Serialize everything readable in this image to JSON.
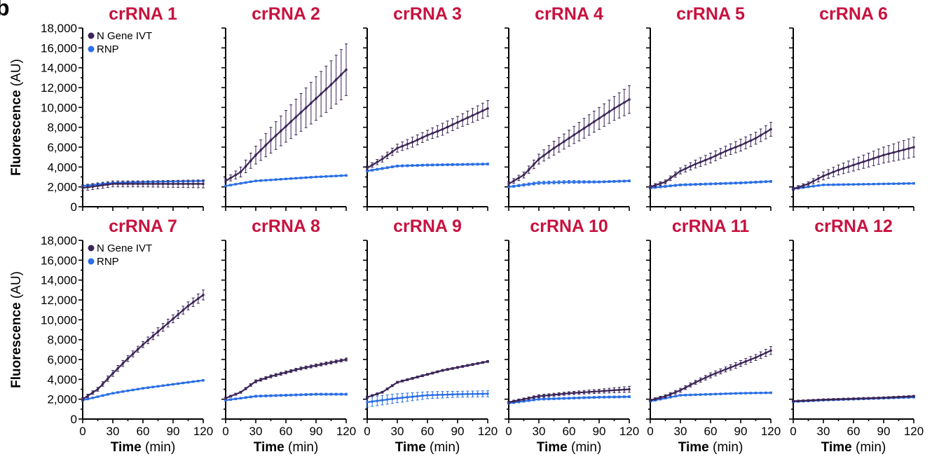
{
  "panel_letter": "b",
  "chart_data": {
    "type": "line",
    "y_axis_label_bold": "Fluorescence",
    "y_axis_label_unit": "(AU)",
    "x_axis_label_bold": "Time",
    "x_axis_label_unit": "(min)",
    "xlim": [
      0,
      120
    ],
    "ylim": [
      0,
      18000
    ],
    "x_ticks": [
      0,
      30,
      60,
      90,
      120
    ],
    "y_ticks": [
      0,
      2000,
      4000,
      6000,
      8000,
      10000,
      12000,
      14000,
      16000,
      18000
    ],
    "y_tick_labels": [
      "0",
      "2,000",
      "4,000",
      "6,000",
      "8,000",
      "10,000",
      "12,000",
      "14,000",
      "16,000",
      "18,000"
    ],
    "x_tick_labels": [
      "0",
      "30",
      "60",
      "90",
      "120"
    ],
    "grid": false,
    "legend_position": "top-left",
    "series_colors": {
      "ivt": "#3b2558",
      "rnp": "#2a6fe6"
    },
    "legend": [
      {
        "key": "ivt",
        "label": "N Gene IVT"
      },
      {
        "key": "rnp",
        "label": "RNP"
      }
    ],
    "panels": [
      {
        "title": "crRNA 1",
        "ivt": {
          "x": [
            0,
            30,
            60,
            90,
            120
          ],
          "y": [
            1900,
            2300,
            2300,
            2300,
            2300
          ],
          "err": [
            300,
            300,
            300,
            350,
            400
          ]
        },
        "rnp": {
          "x": [
            0,
            30,
            60,
            90,
            120
          ],
          "y": [
            2100,
            2400,
            2500,
            2550,
            2600
          ],
          "err": [
            100,
            80,
            80,
            80,
            80
          ]
        }
      },
      {
        "title": "crRNA 2",
        "ivt": {
          "x": [
            0,
            15,
            30,
            45,
            60,
            75,
            90,
            105,
            120
          ],
          "y": [
            2600,
            3500,
            5200,
            6700,
            8100,
            9500,
            10900,
            12300,
            13800
          ],
          "err": [
            200,
            500,
            900,
            1300,
            1600,
            1900,
            2200,
            2400,
            2600
          ]
        },
        "rnp": {
          "x": [
            0,
            30,
            60,
            90,
            120
          ],
          "y": [
            2100,
            2600,
            2800,
            3000,
            3150
          ],
          "err": [
            80,
            80,
            80,
            80,
            80
          ]
        }
      },
      {
        "title": "crRNA 3",
        "ivt": {
          "x": [
            0,
            15,
            30,
            45,
            60,
            75,
            90,
            105,
            120
          ],
          "y": [
            3900,
            4800,
            5900,
            6500,
            7200,
            7800,
            8500,
            9200,
            9900
          ],
          "err": [
            200,
            300,
            400,
            500,
            500,
            600,
            600,
            700,
            800
          ]
        },
        "rnp": {
          "x": [
            0,
            30,
            60,
            90,
            120
          ],
          "y": [
            3600,
            4100,
            4200,
            4250,
            4300
          ],
          "err": [
            100,
            100,
            100,
            100,
            100
          ]
        }
      },
      {
        "title": "crRNA 4",
        "ivt": {
          "x": [
            0,
            15,
            30,
            45,
            60,
            75,
            90,
            105,
            120
          ],
          "y": [
            2300,
            3200,
            4800,
            5900,
            6900,
            7900,
            8900,
            9900,
            10800
          ],
          "err": [
            200,
            300,
            500,
            700,
            800,
            1000,
            1100,
            1200,
            1400
          ]
        },
        "rnp": {
          "x": [
            0,
            30,
            60,
            90,
            120
          ],
          "y": [
            2000,
            2400,
            2500,
            2500,
            2600
          ],
          "err": [
            100,
            150,
            150,
            100,
            100
          ]
        }
      },
      {
        "title": "crRNA 5",
        "ivt": {
          "x": [
            0,
            15,
            30,
            45,
            60,
            75,
            90,
            105,
            120
          ],
          "y": [
            2000,
            2500,
            3600,
            4300,
            4900,
            5600,
            6200,
            6900,
            7800
          ],
          "err": [
            150,
            200,
            300,
            400,
            500,
            500,
            600,
            600,
            700
          ]
        },
        "rnp": {
          "x": [
            0,
            30,
            60,
            90,
            120
          ],
          "y": [
            1900,
            2200,
            2300,
            2400,
            2550
          ],
          "err": [
            100,
            100,
            100,
            100,
            100
          ]
        }
      },
      {
        "title": "crRNA 6",
        "ivt": {
          "x": [
            0,
            15,
            30,
            45,
            60,
            75,
            90,
            105,
            120
          ],
          "y": [
            1800,
            2300,
            3100,
            3700,
            4200,
            4700,
            5200,
            5600,
            6000
          ],
          "err": [
            150,
            200,
            400,
            500,
            600,
            700,
            800,
            900,
            1000
          ]
        },
        "rnp": {
          "x": [
            0,
            30,
            60,
            90,
            120
          ],
          "y": [
            1800,
            2200,
            2250,
            2300,
            2350
          ],
          "err": [
            80,
            80,
            80,
            80,
            80
          ]
        }
      },
      {
        "title": "crRNA 7",
        "ivt": {
          "x": [
            0,
            15,
            30,
            45,
            60,
            75,
            90,
            105,
            120
          ],
          "y": [
            2000,
            3000,
            4600,
            6100,
            7500,
            8800,
            10100,
            11400,
            12500
          ],
          "err": [
            150,
            200,
            300,
            300,
            300,
            400,
            400,
            400,
            500
          ]
        },
        "rnp": {
          "x": [
            0,
            30,
            60,
            90,
            120
          ],
          "y": [
            1900,
            2600,
            3100,
            3500,
            3900
          ],
          "err": [
            80,
            80,
            80,
            80,
            80
          ]
        }
      },
      {
        "title": "crRNA 8",
        "ivt": {
          "x": [
            0,
            15,
            30,
            45,
            60,
            75,
            90,
            105,
            120
          ],
          "y": [
            2100,
            2700,
            3800,
            4300,
            4700,
            5100,
            5400,
            5700,
            6000
          ],
          "err": [
            100,
            100,
            150,
            150,
            150,
            150,
            150,
            150,
            150
          ]
        },
        "rnp": {
          "x": [
            0,
            30,
            60,
            90,
            120
          ],
          "y": [
            1900,
            2300,
            2400,
            2500,
            2500
          ],
          "err": [
            80,
            100,
            100,
            100,
            100
          ]
        }
      },
      {
        "title": "crRNA 9",
        "ivt": {
          "x": [
            0,
            15,
            30,
            45,
            60,
            75,
            90,
            105,
            120
          ],
          "y": [
            2200,
            2700,
            3700,
            4100,
            4500,
            4900,
            5200,
            5500,
            5800
          ],
          "err": [
            100,
            100,
            100,
            100,
            100,
            100,
            100,
            100,
            100
          ]
        },
        "rnp": {
          "x": [
            0,
            30,
            60,
            90,
            120
          ],
          "y": [
            1700,
            2100,
            2400,
            2500,
            2550
          ],
          "err": [
            500,
            450,
            350,
            300,
            300
          ]
        }
      },
      {
        "title": "crRNA 10",
        "ivt": {
          "x": [
            0,
            30,
            60,
            90,
            120
          ],
          "y": [
            1700,
            2300,
            2600,
            2800,
            3000
          ],
          "err": [
            100,
            150,
            150,
            200,
            300
          ]
        },
        "rnp": {
          "x": [
            0,
            30,
            60,
            90,
            120
          ],
          "y": [
            1600,
            2000,
            2100,
            2200,
            2250
          ],
          "err": [
            100,
            100,
            100,
            100,
            100
          ]
        }
      },
      {
        "title": "crRNA 11",
        "ivt": {
          "x": [
            0,
            15,
            30,
            45,
            60,
            75,
            90,
            105,
            120
          ],
          "y": [
            1900,
            2300,
            2900,
            3700,
            4400,
            5000,
            5600,
            6200,
            6900
          ],
          "err": [
            100,
            150,
            200,
            200,
            250,
            250,
            300,
            300,
            400
          ]
        },
        "rnp": {
          "x": [
            0,
            30,
            60,
            90,
            120
          ],
          "y": [
            1800,
            2400,
            2500,
            2600,
            2650
          ],
          "err": [
            80,
            80,
            80,
            80,
            80
          ]
        }
      },
      {
        "title": "crRNA 12",
        "ivt": {
          "x": [
            0,
            30,
            60,
            90,
            120
          ],
          "y": [
            1800,
            1950,
            2050,
            2150,
            2300
          ],
          "err": [
            80,
            80,
            80,
            80,
            80
          ]
        },
        "rnp": {
          "x": [
            0,
            30,
            60,
            90,
            120
          ],
          "y": [
            1750,
            1900,
            2000,
            2100,
            2200
          ],
          "err": [
            80,
            80,
            80,
            80,
            80
          ]
        }
      }
    ]
  }
}
